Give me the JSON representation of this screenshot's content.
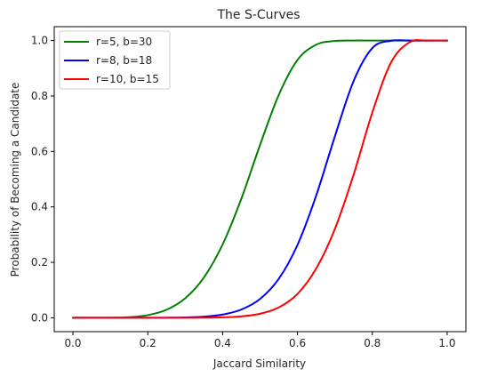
{
  "chart_data": {
    "type": "line",
    "title": "The S-Curves",
    "xlabel": "Jaccard Similarity",
    "ylabel": "Probability of Becoming a Candidate",
    "xlim": [
      -0.05,
      1.05
    ],
    "ylim": [
      -0.05,
      1.05
    ],
    "xticks": [
      "0.0",
      "0.2",
      "0.4",
      "0.6",
      "0.8",
      "1.0"
    ],
    "yticks": [
      "0.0",
      "0.2",
      "0.4",
      "0.6",
      "0.8",
      "1.0"
    ],
    "grid": false,
    "legend_position": "top-left",
    "x": [
      0.0,
      0.05,
      0.1,
      0.15,
      0.2,
      0.25,
      0.3,
      0.35,
      0.4,
      0.45,
      0.5,
      0.55,
      0.6,
      0.65,
      0.7,
      0.75,
      0.8,
      0.85,
      0.9,
      0.95,
      1.0
    ],
    "series": [
      {
        "name": "r=5, b=30",
        "color": "#008000",
        "values": [
          0.0,
          0.0,
          0.0003,
          0.0023,
          0.0096,
          0.029,
          0.0703,
          0.1454,
          0.2647,
          0.4294,
          0.6235,
          0.8039,
          0.9299,
          0.9852,
          0.9985,
          1.0,
          1.0,
          1.0,
          1.0,
          1.0,
          1.0
        ]
      },
      {
        "name": "r=8, b=18",
        "color": "#0000ff",
        "values": [
          0.0,
          0.0,
          0.0,
          0.0,
          0.0001,
          0.0003,
          0.0012,
          0.0041,
          0.0117,
          0.0298,
          0.0679,
          0.1405,
          0.2627,
          0.4409,
          0.6547,
          0.8541,
          0.9729,
          0.9991,
          1.0,
          1.0,
          1.0
        ]
      },
      {
        "name": "r=10, b=15",
        "color": "#ff0000",
        "values": [
          0.0,
          0.0,
          0.0,
          0.0,
          0.0,
          0.0,
          0.0001,
          0.0004,
          0.0016,
          0.005,
          0.0145,
          0.0373,
          0.0861,
          0.1776,
          0.3205,
          0.5164,
          0.7403,
          0.921,
          0.9941,
          1.0,
          1.0
        ]
      }
    ]
  }
}
